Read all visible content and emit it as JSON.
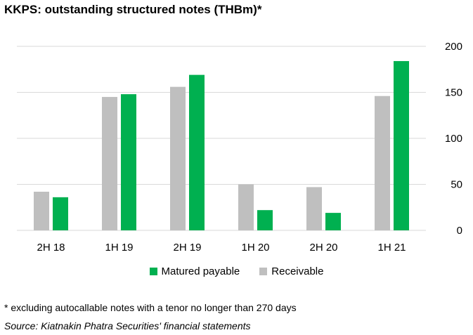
{
  "title": "KKPS: outstanding structured notes (THBm)*",
  "footnote": "* excluding autocallable notes with a tenor no longer than 270 days",
  "source": "Source: Kiatnakin Phatra Securities' financial statements",
  "colors": {
    "matured_payable": "#00b050",
    "receivable": "#bfbfbf",
    "grid": "#d9d9d9"
  },
  "chart_data": {
    "type": "bar",
    "categories": [
      "2H 18",
      "1H 19",
      "2H 19",
      "1H 20",
      "2H 20",
      "1H 21"
    ],
    "series": [
      {
        "name": "Receivable",
        "values": [
          42,
          145,
          156,
          50,
          47,
          146
        ]
      },
      {
        "name": "Matured payable",
        "values": [
          36,
          148,
          169,
          22,
          19,
          184
        ]
      }
    ],
    "ylim": [
      0,
      200
    ],
    "yticks": [
      "0",
      "50",
      "100",
      "150",
      "200"
    ],
    "grid": true,
    "legend_position": "bottom"
  },
  "legend": [
    {
      "label": "Matured payable",
      "color_key": "matured_payable"
    },
    {
      "label": "Receivable",
      "color_key": "receivable"
    }
  ]
}
